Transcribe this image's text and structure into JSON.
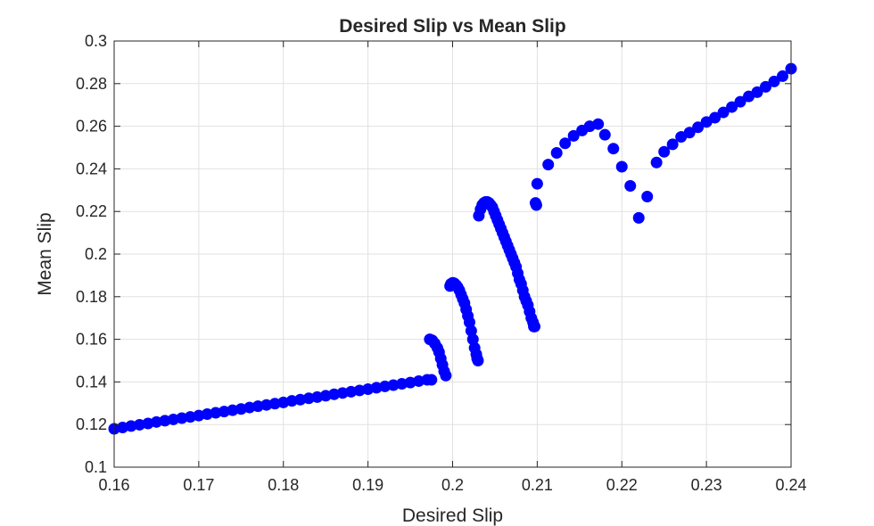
{
  "chart_data": {
    "type": "scatter",
    "title": "Desired Slip vs Mean Slip",
    "xlabel": "Desired Slip",
    "ylabel": "Mean Slip",
    "xlim": [
      0.16,
      0.24
    ],
    "ylim": [
      0.1,
      0.3
    ],
    "xticks": [
      0.16,
      0.17,
      0.18,
      0.19,
      0.2,
      0.21,
      0.22,
      0.23,
      0.24
    ],
    "xtick_labels": [
      "0.16",
      "0.17",
      "0.18",
      "0.19",
      "0.2",
      "0.21",
      "0.22",
      "0.23",
      "0.24"
    ],
    "yticks": [
      0.1,
      0.12,
      0.14,
      0.16,
      0.18,
      0.2,
      0.22,
      0.24,
      0.26,
      0.28,
      0.3
    ],
    "ytick_labels": [
      "0.1",
      "0.12",
      "0.14",
      "0.16",
      "0.18",
      "0.2",
      "0.22",
      "0.24",
      "0.26",
      "0.28",
      "0.3"
    ],
    "grid": true,
    "legend": false,
    "marker_color": "#0000ff",
    "series": [
      {
        "x": [
          0.16,
          0.161,
          0.162,
          0.163,
          0.164,
          0.165,
          0.166,
          0.167,
          0.168,
          0.169,
          0.17,
          0.171,
          0.172,
          0.173,
          0.174,
          0.175,
          0.176,
          0.177,
          0.178,
          0.179,
          0.18,
          0.181,
          0.182,
          0.183,
          0.184,
          0.185,
          0.186,
          0.187,
          0.188,
          0.189,
          0.19,
          0.191,
          0.192,
          0.193,
          0.194,
          0.195,
          0.196,
          0.197,
          0.1975,
          0.1973,
          0.1976,
          0.1979,
          0.1982,
          0.1984,
          0.1986,
          0.1988,
          0.199,
          0.1992,
          0.1997,
          0.1998,
          0.2,
          0.2002,
          0.2004,
          0.2006,
          0.2008,
          0.201,
          0.2012,
          0.2014,
          0.2016,
          0.2018,
          0.202,
          0.2022,
          0.2024,
          0.2026,
          0.2028,
          0.2029,
          0.203,
          0.2031,
          0.2033,
          0.2035,
          0.2037,
          0.2039,
          0.2041,
          0.2043,
          0.2045,
          0.2047,
          0.2049,
          0.2051,
          0.2053,
          0.2055,
          0.2057,
          0.2059,
          0.2061,
          0.2063,
          0.2065,
          0.2067,
          0.2069,
          0.2071,
          0.2073,
          0.2075,
          0.2077,
          0.2079,
          0.2081,
          0.2083,
          0.2085,
          0.2087,
          0.2089,
          0.2091,
          0.2093,
          0.2095,
          0.2096,
          0.2097,
          0.2098,
          0.2099,
          0.21,
          0.2113,
          0.2123,
          0.2133,
          0.2143,
          0.2153,
          0.2162,
          0.2172,
          0.218,
          0.219,
          0.22,
          0.221,
          0.222,
          0.223,
          0.2241,
          0.225,
          0.226,
          0.227,
          0.228,
          0.229,
          0.23,
          0.231,
          0.232,
          0.233,
          0.234,
          0.235,
          0.236,
          0.237,
          0.238,
          0.239,
          0.24
        ],
        "y": [
          0.118,
          0.1186,
          0.1193,
          0.1199,
          0.1205,
          0.1212,
          0.1218,
          0.1224,
          0.123,
          0.1236,
          0.1242,
          0.1249,
          0.1255,
          0.1261,
          0.1267,
          0.1273,
          0.128,
          0.1286,
          0.1292,
          0.1298,
          0.1304,
          0.1311,
          0.1317,
          0.1323,
          0.1329,
          0.1335,
          0.1342,
          0.1348,
          0.1354,
          0.136,
          0.1366,
          0.1373,
          0.1379,
          0.1385,
          0.1391,
          0.1397,
          0.1404,
          0.141,
          0.141,
          0.16,
          0.1595,
          0.158,
          0.156,
          0.154,
          0.151,
          0.148,
          0.145,
          0.143,
          0.185,
          0.186,
          0.1865,
          0.1863,
          0.1855,
          0.1845,
          0.183,
          0.181,
          0.179,
          0.177,
          0.174,
          0.171,
          0.168,
          0.164,
          0.16,
          0.156,
          0.153,
          0.151,
          0.15,
          0.218,
          0.221,
          0.223,
          0.224,
          0.2245,
          0.2245,
          0.224,
          0.223,
          0.222,
          0.22,
          0.218,
          0.216,
          0.214,
          0.212,
          0.21,
          0.208,
          0.206,
          0.204,
          0.202,
          0.2,
          0.198,
          0.196,
          0.194,
          0.191,
          0.188,
          0.186,
          0.183,
          0.18,
          0.178,
          0.176,
          0.173,
          0.17,
          0.168,
          0.166,
          0.166,
          0.224,
          0.223,
          0.233,
          0.242,
          0.2475,
          0.252,
          0.2555,
          0.258,
          0.26,
          0.261,
          0.256,
          0.2495,
          0.241,
          0.232,
          0.217,
          0.227,
          0.243,
          0.248,
          0.2515,
          0.255,
          0.257,
          0.2595,
          0.262,
          0.264,
          0.2665,
          0.269,
          0.2715,
          0.274,
          0.276,
          0.2785,
          0.281,
          0.2835,
          0.287
        ]
      }
    ]
  }
}
